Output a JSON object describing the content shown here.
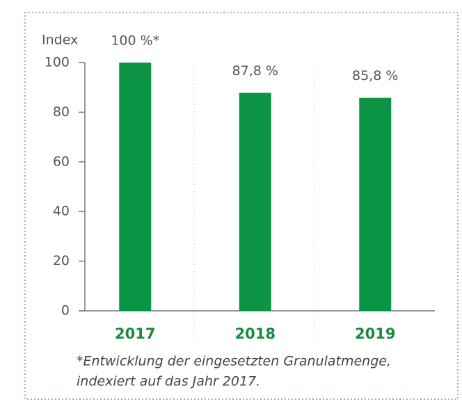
{
  "chart_data": {
    "type": "bar",
    "y_label": "Index",
    "categories": [
      "2017",
      "2018",
      "2019"
    ],
    "values": [
      100,
      87.8,
      85.8
    ],
    "value_labels": [
      "100 %*",
      "87,8 %",
      "85,8 %"
    ],
    "color": "#0a9444",
    "ylim": [
      0,
      100
    ],
    "yticks": [
      0,
      20,
      40,
      60,
      80,
      100
    ],
    "footnote": [
      "*Entwicklung der eingesetzten Granulatmenge,",
      "indexiert auf das Jahr 2017."
    ]
  }
}
